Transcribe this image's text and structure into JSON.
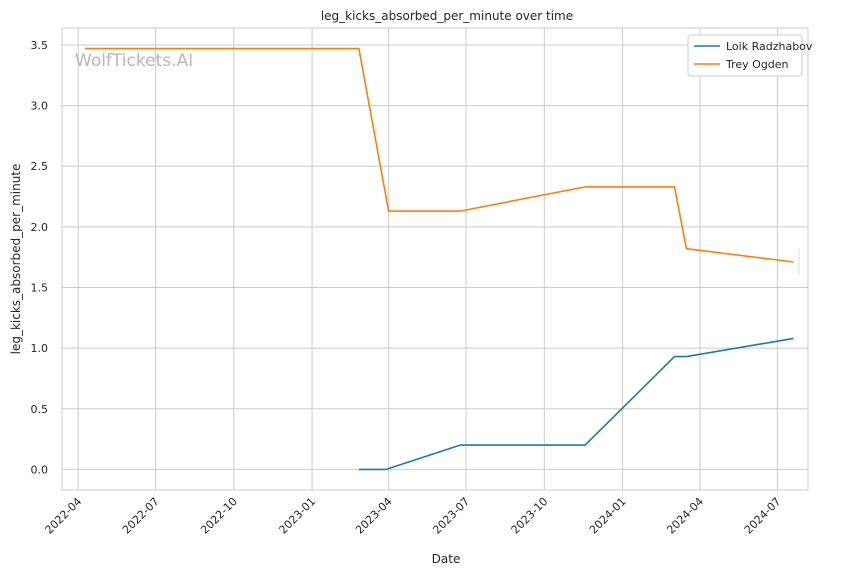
{
  "chart_data": {
    "type": "line",
    "title": "leg_kicks_absorbed_per_minute over time",
    "xlabel": "Date",
    "ylabel": "leg_kicks_absorbed_per_minute",
    "watermark": "WolfTickets.AI",
    "x_ticks": [
      "2022-04",
      "2022-07",
      "2022-10",
      "2023-01",
      "2023-04",
      "2023-07",
      "2023-10",
      "2024-01",
      "2024-04",
      "2024-07"
    ],
    "y_ticks": [
      "0.0",
      "0.5",
      "1.0",
      "1.5",
      "2.0",
      "2.5",
      "3.0",
      "3.5"
    ],
    "ylim": [
      -0.17,
      3.64
    ],
    "xlim": [
      "2022-03-13",
      "2024-08-06"
    ],
    "grid": true,
    "legend_position": "top-right",
    "series": [
      {
        "name": "Loik Radzhabov",
        "color": "#1f77b4",
        "points": [
          {
            "x": "2023-02-25",
            "y": 0.0
          },
          {
            "x": "2023-03-29",
            "y": 0.0
          },
          {
            "x": "2023-06-24",
            "y": 0.2
          },
          {
            "x": "2023-11-18",
            "y": 0.2
          },
          {
            "x": "2024-03-02",
            "y": 0.93
          },
          {
            "x": "2024-03-16",
            "y": 0.93
          },
          {
            "x": "2024-07-20",
            "y": 1.08
          }
        ]
      },
      {
        "name": "Trey Ogden",
        "color": "#ff7f0e",
        "points": [
          {
            "x": "2022-04-09",
            "y": 3.47
          },
          {
            "x": "2023-02-25",
            "y": 3.47
          },
          {
            "x": "2023-04-01",
            "y": 2.13
          },
          {
            "x": "2023-06-24",
            "y": 2.13
          },
          {
            "x": "2023-11-18",
            "y": 2.33
          },
          {
            "x": "2024-03-02",
            "y": 2.33
          },
          {
            "x": "2024-03-16",
            "y": 1.82
          },
          {
            "x": "2024-07-20",
            "y": 1.71
          }
        ]
      }
    ]
  }
}
